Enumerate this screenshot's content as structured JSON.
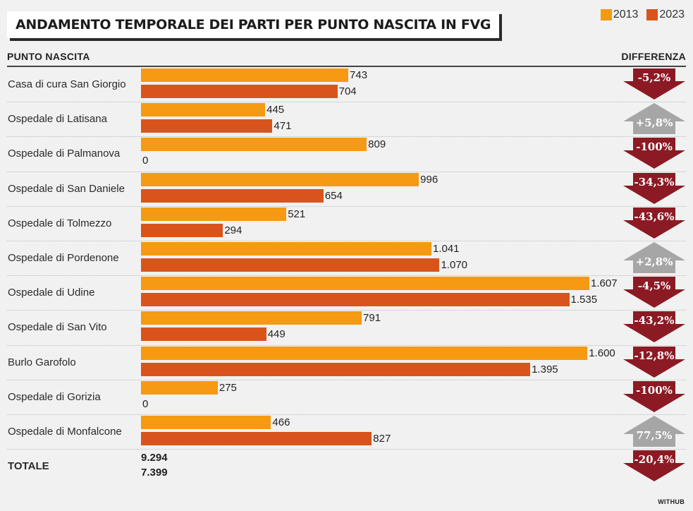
{
  "title": "ANDAMENTO TEMPORALE DEI PARTI PER PUNTO NASCITA IN FVG",
  "colors": {
    "y2013": "#f59a12",
    "y2023": "#d9541c",
    "down": "#8c1a24",
    "up": "#a6a6a6"
  },
  "headers": {
    "left": "PUNTO NASCITA",
    "right": "DIFFERENZA"
  },
  "credit": "WITHUB",
  "chart_data": {
    "type": "bar",
    "orientation": "horizontal",
    "categories": [
      "Casa di cura San Giorgio",
      "Ospedale di Latisana",
      "Ospedale di Palmanova",
      "Ospedale di San Daniele",
      "Ospedale di Tolmezzo",
      "Ospedale di Pordenone",
      "Ospedale di Udine",
      "Ospedale di San Vito",
      "Burlo Garofolo",
      "Ospedale di Gorizia",
      "Ospedale di Monfalcone"
    ],
    "series": [
      {
        "name": "2013",
        "values": [
          743,
          445,
          809,
          996,
          521,
          1041,
          1607,
          791,
          1600,
          275,
          466
        ],
        "labels": [
          "743",
          "445",
          "809",
          "996",
          "521",
          "1.041",
          "1.607",
          "791",
          "1.600",
          "275",
          "466"
        ]
      },
      {
        "name": "2023",
        "values": [
          704,
          471,
          0,
          654,
          294,
          1070,
          1535,
          449,
          1395,
          0,
          827
        ],
        "labels": [
          "704",
          "471",
          "0",
          "654",
          "294",
          "1.070",
          "1.535",
          "449",
          "1.395",
          "0",
          "827"
        ]
      }
    ],
    "differences": [
      "-5,2%",
      "+5,8%",
      "-100%",
      "-34,3%",
      "-43,6%",
      "+2,8%",
      "-4,5%",
      "-43,2%",
      "-12,8%",
      "-100%",
      "77,5%"
    ],
    "difference_direction": [
      "down",
      "up",
      "down",
      "down",
      "down",
      "up",
      "down",
      "down",
      "down",
      "down",
      "up"
    ],
    "total": {
      "label": "TOTALE",
      "v2013": "9.294",
      "v2023": "7.399",
      "difference": "-20,4%",
      "direction": "down"
    },
    "xlim": [
      0,
      1650
    ],
    "legend_position": "top-right",
    "grid": false
  }
}
